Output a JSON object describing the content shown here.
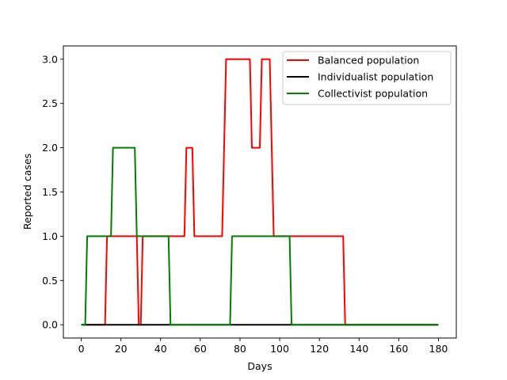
{
  "chart_data": {
    "type": "line",
    "xlabel": "Days",
    "ylabel": "Reported cases",
    "xlim": [
      -9,
      189
    ],
    "ylim": [
      -0.15,
      3.15
    ],
    "xticks": [
      0,
      20,
      40,
      60,
      80,
      100,
      120,
      140,
      160,
      180
    ],
    "yticks": [
      0.0,
      0.5,
      1.0,
      1.5,
      2.0,
      2.5,
      3.0
    ],
    "xtick_labels": [
      "0",
      "20",
      "40",
      "60",
      "80",
      "100",
      "120",
      "140",
      "160",
      "180"
    ],
    "ytick_labels": [
      "0.0",
      "0.5",
      "1.0",
      "1.5",
      "2.0",
      "2.5",
      "3.0"
    ],
    "grid": false,
    "legend_position": "top-right",
    "series": [
      {
        "name": "Balanced population",
        "color": "#ff0000",
        "points": [
          [
            0,
            0
          ],
          [
            12,
            0
          ],
          [
            13,
            1
          ],
          [
            28,
            1
          ],
          [
            29,
            0
          ],
          [
            30,
            0
          ],
          [
            31,
            1
          ],
          [
            52,
            1
          ],
          [
            53,
            2
          ],
          [
            56,
            2
          ],
          [
            57,
            1
          ],
          [
            71,
            1
          ],
          [
            73,
            3
          ],
          [
            85,
            3
          ],
          [
            86,
            2
          ],
          [
            90,
            2
          ],
          [
            91,
            3
          ],
          [
            95,
            3
          ],
          [
            97,
            1
          ],
          [
            132,
            1
          ],
          [
            133,
            0
          ],
          [
            180,
            0
          ]
        ]
      },
      {
        "name": "Individualist population",
        "color": "#000000",
        "points": [
          [
            0,
            0
          ],
          [
            180,
            0
          ]
        ]
      },
      {
        "name": "Collectivist population",
        "color": "#008000",
        "points": [
          [
            0,
            0
          ],
          [
            2,
            0
          ],
          [
            3,
            1
          ],
          [
            15,
            1
          ],
          [
            16,
            2
          ],
          [
            27,
            2
          ],
          [
            28,
            1
          ],
          [
            44,
            1
          ],
          [
            45,
            0
          ],
          [
            75,
            0
          ],
          [
            76,
            1
          ],
          [
            105,
            1
          ],
          [
            106,
            0
          ],
          [
            180,
            0
          ]
        ]
      }
    ]
  }
}
